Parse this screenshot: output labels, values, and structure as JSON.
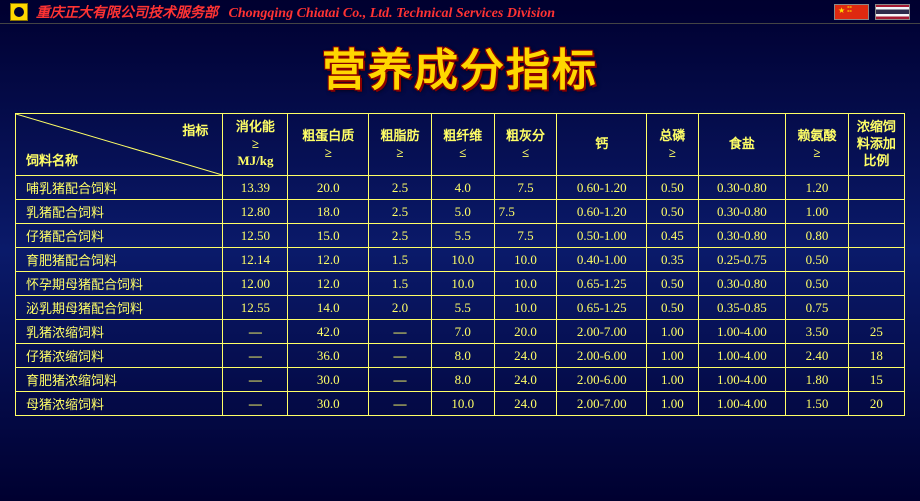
{
  "header": {
    "company_cn": "重庆正大有限公司技术服务部",
    "company_en": "Chongqing Chiatai Co., Ltd. Technical Services Division"
  },
  "title": "营养成分指标",
  "table": {
    "corner": {
      "top": "指标",
      "bottom": "饲料名称"
    },
    "columns": [
      {
        "label": "消化能",
        "op": "≥",
        "unit": "MJ/kg"
      },
      {
        "label": "粗蛋白质",
        "op": "≥",
        "unit": ""
      },
      {
        "label": "粗脂肪",
        "op": "≥",
        "unit": ""
      },
      {
        "label": "粗纤维",
        "op": "≤",
        "unit": ""
      },
      {
        "label": "粗灰分",
        "op": "≤",
        "unit": ""
      },
      {
        "label": "钙",
        "op": "",
        "unit": ""
      },
      {
        "label": "总磷",
        "op": "≥",
        "unit": ""
      },
      {
        "label": "食盐",
        "op": "",
        "unit": ""
      },
      {
        "label": "赖氨酸",
        "op": "≥",
        "unit": ""
      },
      {
        "label": "浓缩饲料添加比例",
        "op": "",
        "unit": "",
        "wrap": true
      }
    ],
    "rows": [
      {
        "name": "哺乳猪配合饲料",
        "v": [
          "13.39",
          "20.0",
          "2.5",
          "4.0",
          "7.5",
          "0.60-1.20",
          "0.50",
          "0.30-0.80",
          "1.20",
          ""
        ]
      },
      {
        "name": "乳猪配合饲料",
        "v": [
          "12.80",
          "18.0",
          "2.5",
          "5.0",
          "7.5",
          "0.60-1.20",
          "0.50",
          "0.30-0.80",
          "1.00",
          ""
        ],
        "left_align_idx": 4
      },
      {
        "name": "仔猪配合饲料",
        "v": [
          "12.50",
          "15.0",
          "2.5",
          "5.5",
          "7.5",
          "0.50-1.00",
          "0.45",
          "0.30-0.80",
          "0.80",
          ""
        ]
      },
      {
        "name": "育肥猪配合饲料",
        "v": [
          "12.14",
          "12.0",
          "1.5",
          "10.0",
          "10.0",
          "0.40-1.00",
          "0.35",
          "0.25-0.75",
          "0.50",
          ""
        ]
      },
      {
        "name": "怀孕期母猪配合饲料",
        "v": [
          "12.00",
          "12.0",
          "1.5",
          "10.0",
          "10.0",
          "0.65-1.25",
          "0.50",
          "0.30-0.80",
          "0.50",
          ""
        ]
      },
      {
        "name": "泌乳期母猪配合饲料",
        "v": [
          "12.55",
          "14.0",
          "2.0",
          "5.5",
          "10.0",
          "0.65-1.25",
          "0.50",
          "0.35-0.85",
          "0.75",
          ""
        ]
      },
      {
        "name": "乳猪浓缩饲料",
        "v": [
          "—",
          "42.0",
          "—",
          "7.0",
          "20.0",
          "2.00-7.00",
          "1.00",
          "1.00-4.00",
          "3.50",
          "25"
        ]
      },
      {
        "name": "仔猪浓缩饲料",
        "v": [
          "—",
          "36.0",
          "—",
          "8.0",
          "24.0",
          "2.00-6.00",
          "1.00",
          "1.00-4.00",
          "2.40",
          "18"
        ]
      },
      {
        "name": "育肥猪浓缩饲料",
        "v": [
          "—",
          "30.0",
          "—",
          "8.0",
          "24.0",
          "2.00-6.00",
          "1.00",
          "1.00-4.00",
          "1.80",
          "15"
        ]
      },
      {
        "name": "母猪浓缩饲料",
        "v": [
          "—",
          "30.0",
          "—",
          "10.0",
          "24.0",
          "2.00-7.00",
          "1.00",
          "1.00-4.00",
          "1.50",
          "20"
        ]
      }
    ]
  },
  "colors": {
    "text": "#ffff66",
    "title": "#ffd700",
    "title_outline": "#8b0000",
    "company": "#ff3333",
    "border": "#ffff66"
  }
}
